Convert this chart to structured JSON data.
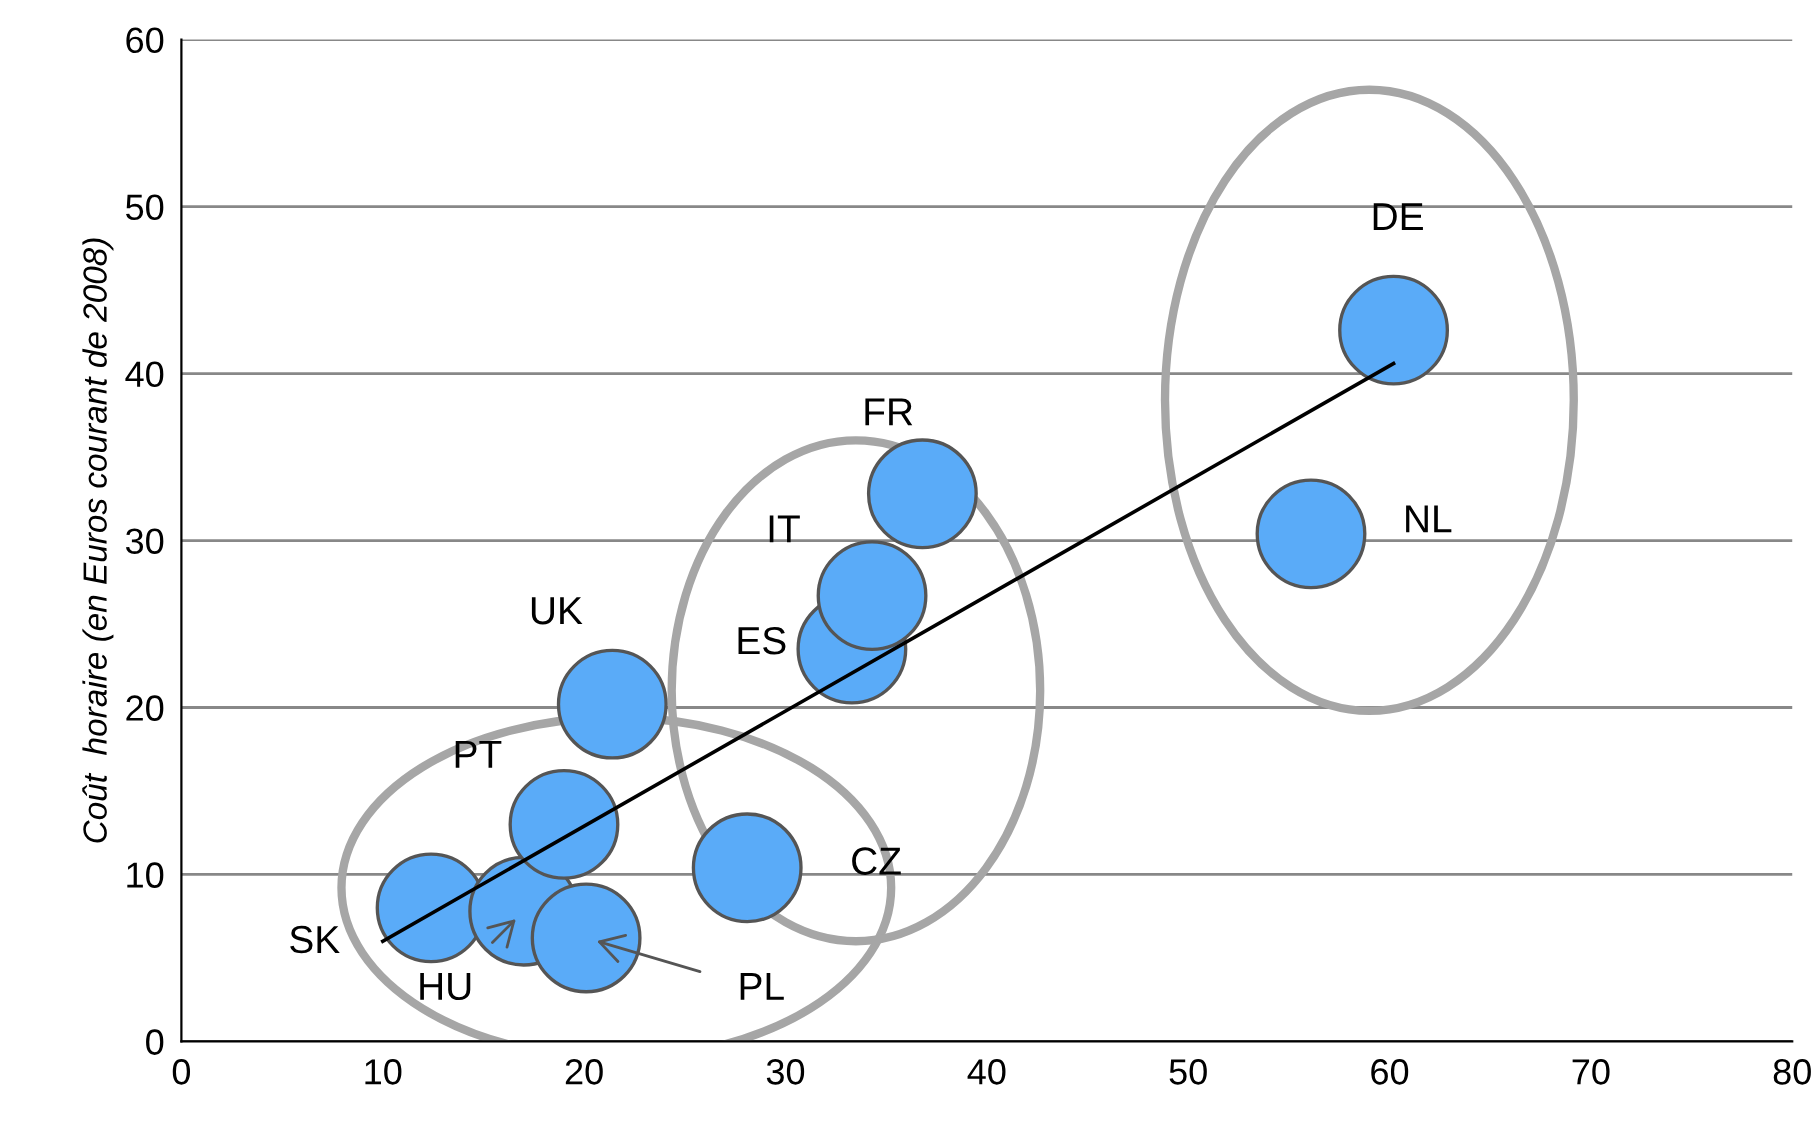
{
  "chart_data": {
    "type": "scatter",
    "ylabel": "Coût  horaire (en Euros courant de 2008)",
    "xlim": [
      0,
      80
    ],
    "ylim": [
      0,
      60
    ],
    "xticks": [
      0,
      10,
      20,
      30,
      40,
      50,
      60,
      70,
      80
    ],
    "yticks": [
      0,
      10,
      20,
      30,
      40,
      50,
      60
    ],
    "grid": "y",
    "series": [
      {
        "color": "#5aabf8",
        "marker": "circle",
        "x": [
          12.4,
          17.0,
          20.1,
          19.0,
          21.4,
          28.1,
          33.3,
          34.3,
          36.8,
          56.1,
          60.2
        ],
        "values": [
          8.0,
          7.8,
          6.2,
          13.0,
          20.2,
          10.4,
          23.5,
          26.7,
          32.8,
          30.4,
          42.6
        ]
      },
      {
        "type": "line",
        "color": "#000000",
        "x": [
          10,
          60.2
        ],
        "values": [
          6.0,
          40.6
        ]
      }
    ],
    "annotations": [
      {
        "text": "SK",
        "x": 12.4,
        "y": 8.0
      },
      {
        "text": "HU",
        "x": 17.0,
        "y": 7.8
      },
      {
        "text": "PL",
        "x": 20.1,
        "y": 6.2
      },
      {
        "text": "PT",
        "x": 19.0,
        "y": 13.0
      },
      {
        "text": "UK",
        "x": 21.4,
        "y": 20.2
      },
      {
        "text": "CZ",
        "x": 28.1,
        "y": 10.4
      },
      {
        "text": "ES",
        "x": 33.3,
        "y": 23.5
      },
      {
        "text": "IT",
        "x": 34.3,
        "y": 26.7
      },
      {
        "text": "FR",
        "x": 36.8,
        "y": 32.8
      },
      {
        "text": "NL",
        "x": 56.1,
        "y": 30.4
      },
      {
        "text": "DE",
        "x": 60.2,
        "y": 42.6
      }
    ]
  }
}
